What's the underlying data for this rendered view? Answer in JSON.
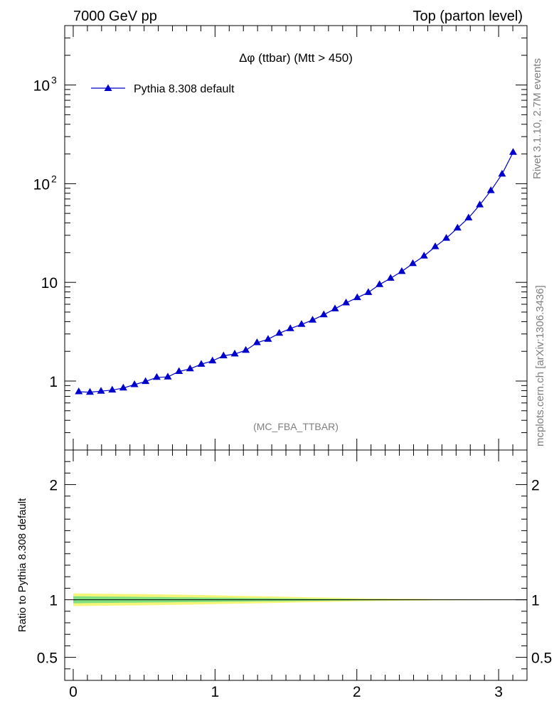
{
  "header": {
    "energy": "7000 GeV pp",
    "process": "Top (parton level)"
  },
  "side_labels": {
    "rivet": "Rivet 3.1.10,  2.7M events",
    "source": "mcplots.cern.ch [arXiv:1306.3436]"
  },
  "chart_data": [
    {
      "type": "line",
      "title": "Δφ (ttbar) (Mtt > 450)",
      "watermark": "(MC_FBA_TTBAR)",
      "yscale": "log",
      "xlim": [
        -0.06,
        3.2
      ],
      "ylim": [
        0.2,
        4000
      ],
      "yticks": [
        {
          "value": 1,
          "label": "1"
        },
        {
          "value": 10,
          "label": "10"
        },
        {
          "value": 100,
          "label": "10",
          "exp": "2"
        },
        {
          "value": 1000,
          "label": "10",
          "exp": "3"
        }
      ],
      "legend": {
        "placement": "top-left"
      },
      "series": [
        {
          "name": "Pythia 8.308 default",
          "color": "#0000cc",
          "marker": "triangle",
          "x": [
            0.039,
            0.118,
            0.196,
            0.275,
            0.353,
            0.432,
            0.51,
            0.589,
            0.667,
            0.746,
            0.824,
            0.903,
            0.982,
            1.06,
            1.139,
            1.217,
            1.296,
            1.374,
            1.453,
            1.531,
            1.61,
            1.688,
            1.767,
            1.846,
            1.924,
            2.003,
            2.081,
            2.16,
            2.238,
            2.317,
            2.395,
            2.474,
            2.553,
            2.631,
            2.71,
            2.788,
            2.867,
            2.945,
            3.024,
            3.102
          ],
          "y": [
            0.78,
            0.77,
            0.79,
            0.81,
            0.85,
            0.92,
            0.99,
            1.09,
            1.1,
            1.25,
            1.33,
            1.48,
            1.6,
            1.8,
            1.88,
            2.05,
            2.45,
            2.65,
            3.05,
            3.4,
            3.75,
            4.15,
            4.7,
            5.4,
            6.2,
            7.0,
            7.9,
            9.5,
            11.0,
            12.9,
            15.5,
            18.5,
            23.0,
            28.0,
            35.5,
            45.0,
            61.0,
            85.0,
            125.0,
            208.0
          ]
        }
      ]
    },
    {
      "type": "line",
      "ylabel": "Ratio to Pythia 8.308 default",
      "xlim": [
        -0.06,
        3.2
      ],
      "ylim": [
        0.3,
        2.3
      ],
      "xticks": [
        0,
        1,
        2,
        3
      ],
      "yticks": [
        0.5,
        1,
        2
      ],
      "reference": 1.0,
      "bands": [
        {
          "color": "#f5f57a",
          "halfwidth": [
            0.055,
            0.052,
            0.05,
            0.048,
            0.045,
            0.042,
            0.038,
            0.034,
            0.03,
            0.026,
            0.022,
            0.018,
            0.014,
            0.011,
            0.009,
            0.007,
            0.005,
            0.004,
            0.003,
            0.002
          ]
        },
        {
          "color": "#80e080",
          "halfwidth": [
            0.03,
            0.028,
            0.026,
            0.024,
            0.022,
            0.02,
            0.018,
            0.016,
            0.014,
            0.012,
            0.01,
            0.008,
            0.006,
            0.005,
            0.004,
            0.003,
            0.002,
            0.0015,
            0.001,
            0.001
          ]
        }
      ]
    }
  ]
}
